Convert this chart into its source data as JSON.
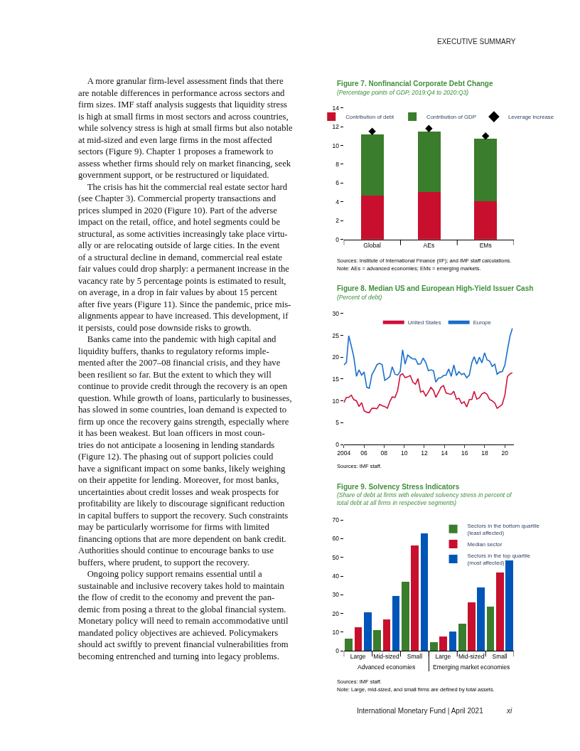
{
  "chart_data": [
    {
      "type": "other",
      "annotations": [
        "EXECUTIVE SUMMARY",
        "A more granular firm-level assessment finds that there\nare notable differences in performance across sectors and\nfirm sizes. IMF staff analysis suggests that liquidity stress\nis high at small firms in most sectors and across countries,\nwhile solvency stress is high at small firms but also notable\nat mid-sized and even large firms in the most affected\nsectors (Figure 9). Chapter 1 proposes a framework to\nassess whether firms should rely on market financing, seek\ngovernment support, or be restructured or liquidated.",
        "The crisis has hit the commercial real estate sector hard\n(see Chapter 3). Commercial property transactions and\nprices slumped in 2020 (Figure 10). Part of the adverse\nimpact on the retail, office, and hotel segments could be\nstructural, as some activities increasingly take place virtu-\nally or are relocating outside of large cities. In the event\nof a structural decline in demand, commercial real estate\nfair values could drop sharply: a permanent increase in the\nvacancy rate by 5 percentage points is estimated to result,\non average, in a drop in fair values by about 15 percent\nafter five years (Figure 11). Since the pandemic, price mis-\nalignments appear to have increased. This development, if\nit persists, could pose downside risks to growth.",
        "Banks came into the pandemic with high capital and\nliquidity buffers, thanks to regulatory reforms imple-\nmented after the 2007–08 financial crisis, and they have\nbeen resilient so far. But the extent to which they will\ncontinue to provide credit through the recovery is an open\nquestion. While growth of loans, particularly to businesses,\nhas slowed in some countries, loan demand is expected to\nfirm up once the recovery gains strength, especially where\nit has been weakest. But loan officers in most coun-\ntries do not anticipate a loosening in lending standards\n(Figure 12). The phasing out of support policies could\nhave a significant impact on some banks, likely weighing\non their appetite for lending. Moreover, for most banks,\nuncertainties about credit losses and weak prospects for\nprofitability are likely to discourage significant reduction\nin capital buffers to support the recovery. Such constraints\nmay be particularly worrisome for firms with limited\nfinancing options that are more dependent on bank credit.\nAuthorities should continue to encourage banks to use\nbuffers, where prudent, to support the recovery.",
        "Ongoing policy support remains essential until a\nsustainable and inclusive recovery takes hold to maintain\nthe flow of credit to the economy and prevent the pan-\ndemic from posing a threat to the global financial system.\nMonetary policy will need to remain accommodative until\nmandated policy objectives are achieved. Policymakers\nshould act swiftly to prevent financial vulnerabilities from\nbecoming entrenched and turning into legacy problems.",
        "International Monetary Fund | April 2021",
        "xi"
      ]
    },
    {
      "type": "bar",
      "stacked": true,
      "title": "Figure 7. Nonfinancial Corporate Debt Change",
      "subtitle": "(Percentage points of GDP, 2019:Q4 to 2020:Q3)",
      "categories": [
        "Global",
        "AEs",
        "EMs"
      ],
      "series": [
        {
          "name": "Contribution of debt",
          "color": "#c8102e",
          "values": [
            4.7,
            5.1,
            4.1
          ]
        },
        {
          "name": "Contribution of GDP",
          "color": "#3a7d2c",
          "values": [
            6.5,
            6.4,
            6.65
          ]
        },
        {
          "name": "Leverage increase",
          "type": "scatter",
          "marker": "diamond",
          "color": "#000000",
          "values": [
            11.5,
            11.8,
            11.0
          ]
        }
      ],
      "ylim": [
        0,
        14
      ],
      "yticks": [
        0,
        2,
        4,
        6,
        8,
        10,
        12,
        14
      ],
      "legend": "top",
      "annotations": [
        "Sources: Institute of International Finance (IIF); and IMF staff calculations.",
        "Note: AEs = advanced economies; EMs = emerging markets."
      ]
    },
    {
      "type": "line",
      "title": "Figure 8. Median US and European High-Yield Issuer Cash",
      "subtitle": "(Percent of debt)",
      "x": [
        2004.0,
        2004.26,
        2004.49,
        2004.74,
        2004.99,
        2005.26,
        2005.51,
        2005.77,
        2006.02,
        2006.28,
        2006.53,
        2006.79,
        2007.05,
        2007.3,
        2007.56,
        2007.81,
        2008.07,
        2008.33,
        2008.58,
        2008.81,
        2009.09,
        2009.35,
        2009.6,
        2009.84,
        2010.09,
        2010.35,
        2010.6,
        2010.86,
        2011.12,
        2011.37,
        2011.63,
        2011.88,
        2012.14,
        2012.4,
        2012.65,
        2012.91,
        2013.14,
        2013.4,
        2013.65,
        2013.91,
        2014.16,
        2014.42,
        2014.67,
        2014.93,
        2015.19,
        2015.44,
        2015.7,
        2015.95,
        2016.21,
        2016.47,
        2016.72,
        2016.95,
        2017.21,
        2017.47,
        2017.72,
        2017.98,
        2018.23,
        2018.49,
        2018.74,
        2019.0,
        2019.23,
        2019.49,
        2019.74,
        2020.0,
        2020.26,
        2020.51,
        2020.74
      ],
      "series": [
        {
          "name": "United States",
          "color": "#d0103a",
          "values": [
            9.6,
            10.8,
            10.8,
            11.3,
            10.3,
            10.0,
            8.7,
            9.6,
            7.7,
            7.4,
            7.3,
            8.3,
            8.3,
            8.2,
            9.2,
            8.9,
            8.7,
            8.3,
            9.9,
            10.9,
            10.8,
            12.4,
            15.9,
            16.2,
            15.3,
            15.5,
            15.8,
            14.3,
            13.8,
            15.1,
            12.0,
            12.3,
            11.1,
            12.0,
            13.1,
            12.4,
            10.8,
            11.9,
            13.1,
            13.5,
            11.8,
            11.6,
            11.5,
            12.2,
            10.4,
            10.6,
            9.4,
            9.8,
            8.6,
            10.3,
            10.3,
            12.2,
            10.4,
            10.7,
            11.6,
            11.9,
            11.5,
            10.3,
            10.0,
            9.5,
            8.3,
            8.7,
            9.2,
            11.3,
            15.6,
            16.2,
            16.4
          ]
        },
        {
          "name": "Europe",
          "color": "#1a6fc9",
          "values": [
            18.2,
            18.8,
            24.9,
            22.6,
            20.1,
            15.6,
            17.1,
            15.9,
            16.6,
            13.1,
            12.9,
            16.0,
            17.1,
            18.3,
            18.6,
            18.3,
            14.7,
            15.1,
            15.6,
            17.8,
            16.1,
            15.9,
            16.7,
            21.7,
            18.4,
            20.5,
            20.0,
            19.6,
            19.6,
            18.4,
            18.5,
            19.8,
            18.8,
            16.9,
            17.1,
            16.9,
            14.3,
            15.2,
            15.3,
            15.8,
            15.9,
            17.3,
            15.6,
            18.2,
            15.8,
            16.7,
            16.0,
            16.3,
            15.3,
            15.9,
            18.8,
            20.1,
            18.4,
            20.0,
            18.7,
            21.0,
            19.4,
            19.1,
            17.9,
            18.4,
            16.1,
            16.6,
            16.7,
            18.2,
            21.7,
            24.8,
            26.6
          ]
        }
      ],
      "xlim": [
        2004,
        2020.9
      ],
      "xticks": [
        2004,
        {
          "value": 2006,
          "label": "06"
        },
        {
          "value": 2008,
          "label": "08"
        },
        {
          "value": 2010,
          "label": "10"
        },
        {
          "value": 2012,
          "label": "12"
        },
        {
          "value": 2014,
          "label": "14"
        },
        {
          "value": 2016,
          "label": "16"
        },
        {
          "value": 2018,
          "label": "18"
        },
        {
          "value": 2020,
          "label": "20"
        }
      ],
      "ylim": [
        0,
        30
      ],
      "yticks": [
        0,
        5,
        10,
        15,
        20,
        25,
        30
      ],
      "legend": "top",
      "line_style": "solid",
      "annotations": [
        "Sources: IMF staff."
      ]
    },
    {
      "type": "bar",
      "title": "Figure 9. Solvency Stress Indicators",
      "subtitle": "(Share of debt at firms with elevated solvency stress in percent of\ntotal debt at all firms in respective segments)",
      "categories": [
        "Large",
        "Mid-sized",
        "Small",
        "Large",
        "Mid-sized",
        "Small"
      ],
      "series": [
        {
          "name": "Sectors in the bottom quartile\n(least affected)",
          "color": "#3a7d2c",
          "values": [
            6.6,
            11.1,
            37.0,
            4.8,
            14.5,
            23.5
          ]
        },
        {
          "name": "Median sector",
          "color": "#c8102e",
          "values": [
            12.7,
            16.8,
            56.3,
            7.8,
            25.8,
            41.8
          ]
        },
        {
          "name": "Sectors in the top quartile\n(most affected)",
          "color": "#0055b8",
          "values": [
            20.5,
            29.5,
            62.7,
            10.5,
            34.0,
            48.5
          ]
        }
      ],
      "ylim": [
        0,
        70
      ],
      "yticks": [
        0,
        10,
        20,
        30,
        40,
        50,
        60,
        70
      ],
      "legend": "top right",
      "annotations": [
        "Advanced economies",
        "Emerging market economies",
        "Sources: IMF staff.",
        "Note: Large, mid-sized, and small firms are defined by total assets."
      ]
    }
  ]
}
